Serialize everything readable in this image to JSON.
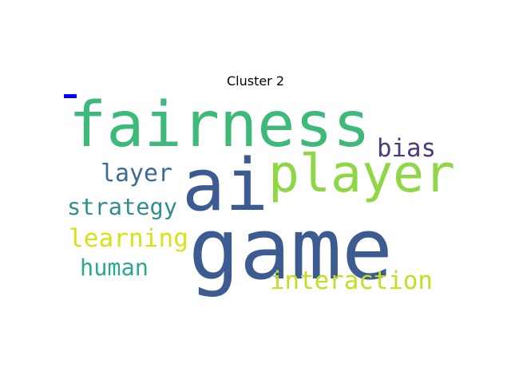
{
  "title": "Cluster 2",
  "marker_color": "#0000ff",
  "words": [
    {
      "text": "game",
      "color": "#3b5b91"
    },
    {
      "text": "ai",
      "color": "#3b5b91"
    },
    {
      "text": "fairness",
      "color": "#3dba7a"
    },
    {
      "text": "player",
      "color": "#8fd744"
    },
    {
      "text": "bias",
      "color": "#4b3a7d"
    },
    {
      "text": "layer",
      "color": "#3e6a94"
    },
    {
      "text": "strategy",
      "color": "#2e8f92"
    },
    {
      "text": "learning",
      "color": "#d8e219"
    },
    {
      "text": "human",
      "color": "#2aa892"
    },
    {
      "text": "interaction",
      "color": "#c2df23"
    }
  ]
}
